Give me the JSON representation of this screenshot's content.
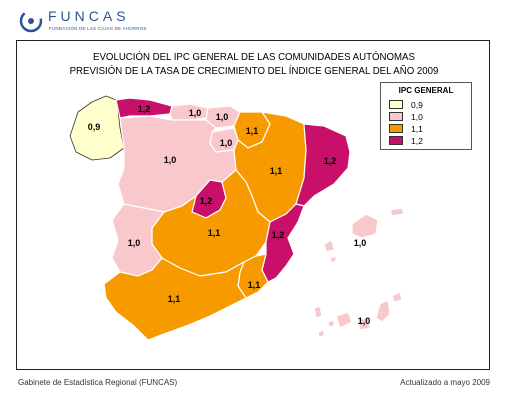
{
  "logo": {
    "name": "FUNCAS",
    "subtitle": "FUNDACIÓN DE LAS CAJAS DE AHORROS"
  },
  "title": {
    "line1": "EVOLUCIÓN DEL IPC GENERAL DE LAS COMUNIDADES AUTÓNOMAS",
    "line2": "PREVISIÓN DE LA TASA DE CRECIMIENTO DEL ÍNDICE GENERAL DEL AÑO 2009"
  },
  "legend": {
    "title": "IPC GENERAL",
    "items": [
      {
        "label": "0,9",
        "color": "#ffffcc"
      },
      {
        "label": "1,0",
        "color": "#f8c8cc"
      },
      {
        "label": "1,1",
        "color": "#f79a00"
      },
      {
        "label": "1,2",
        "color": "#c8106a"
      }
    ]
  },
  "regions": [
    {
      "name": "Galicia",
      "value": "0,9",
      "color": "#ffffcc"
    },
    {
      "name": "Asturias",
      "value": "1,2",
      "color": "#c8106a"
    },
    {
      "name": "Cantabria",
      "value": "1,0",
      "color": "#f8c8cc"
    },
    {
      "name": "País Vasco",
      "value": "1,0",
      "color": "#f8c8cc"
    },
    {
      "name": "Navarra",
      "value": "1,1",
      "color": "#f79a00"
    },
    {
      "name": "La Rioja",
      "value": "1,0",
      "color": "#f8c8cc"
    },
    {
      "name": "Castilla y León",
      "value": "1,0",
      "color": "#f8c8cc"
    },
    {
      "name": "Aragón",
      "value": "1,1",
      "color": "#f79a00"
    },
    {
      "name": "Cataluña",
      "value": "1,2",
      "color": "#c8106a"
    },
    {
      "name": "Madrid",
      "value": "1,2",
      "color": "#c8106a"
    },
    {
      "name": "Castilla-La Mancha",
      "value": "1,1",
      "color": "#f79a00"
    },
    {
      "name": "Comunidad Valenciana",
      "value": "1,2",
      "color": "#c8106a"
    },
    {
      "name": "Extremadura",
      "value": "1,0",
      "color": "#f8c8cc"
    },
    {
      "name": "Andalucía",
      "value": "1,1",
      "color": "#f79a00"
    },
    {
      "name": "Murcia",
      "value": "1,1",
      "color": "#f79a00"
    },
    {
      "name": "Baleares",
      "value": "1,0",
      "color": "#f8c8cc"
    },
    {
      "name": "Canarias",
      "value": "1,0",
      "color": "#f8c8cc"
    }
  ],
  "footer": {
    "left": "Gabinete de  Estadística Regional (FUNCAS)",
    "right": "Actualizado a mayo 2009"
  }
}
